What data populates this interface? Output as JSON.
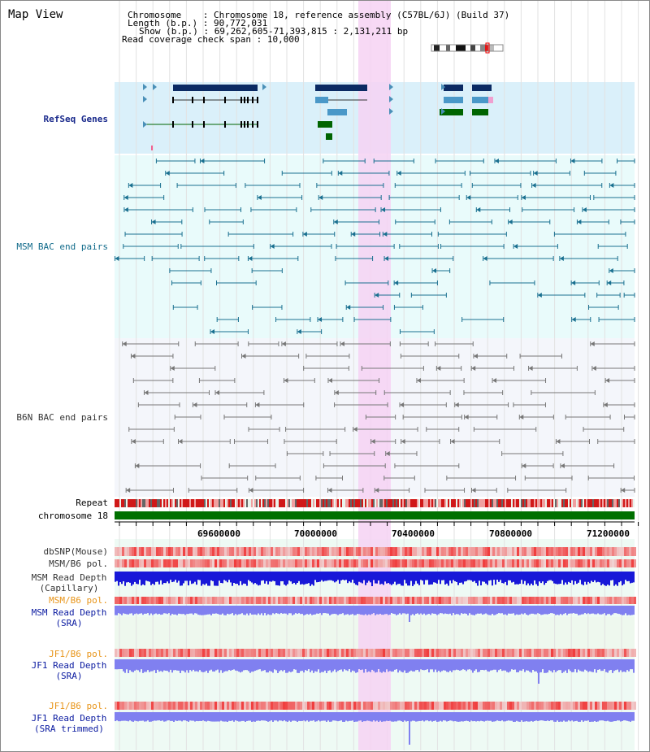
{
  "title": "Map View",
  "info": {
    "chromosome_label": "Chromosome",
    "chromosome_value": "Chromosome 18, reference assembly (C57BL/6J) (Build 37)",
    "length_label": "Length (b.p.)",
    "length_value": "90,772,031",
    "show_label": "Show (b.p.)",
    "show_value": "69,262,605-71,393,815 : 2,131,211 bp",
    "span_label": "Read coverage check span",
    "span_value": "10,000"
  },
  "tracks": {
    "refseq": "RefSeq Genes",
    "msm_bac": "MSM BAC end pairs",
    "b6n_bac": "B6N BAC end pairs",
    "repeat": "Repeat",
    "chromosome": "chromosome 18",
    "dbsnp": "dbSNP(Mouse)",
    "msm_b6_pol_1": "MSM/B6 pol.",
    "msm_depth_cap_1": "MSM Read Depth",
    "msm_depth_cap_2": "(Capillary)",
    "msm_b6_pol_2": "MSM/B6 pol.",
    "msm_depth_sra_1": "MSM Read Depth",
    "msm_depth_sra_2": "(SRA)",
    "jf1_b6_pol_1": "JF1/B6 pol.",
    "jf1_depth_sra_1": "JF1 Read Depth",
    "jf1_depth_sra_2": "(SRA)",
    "jf1_b6_pol_2": "JF1/B6 pol.",
    "jf1_depth_trim_1": "JF1 Read Depth",
    "jf1_depth_trim_2": "(SRA trimmed)"
  },
  "axis": {
    "ticks": [
      "69600000",
      "70000000",
      "70400000",
      "70800000",
      "71200000"
    ]
  },
  "colors": {
    "refseq_bg": "#daf0fa",
    "msm_bg": "#e9fbfb",
    "b6n_bg": "#f4f6fb",
    "highlight": "#f6d2f3",
    "gene_navy": "#0b2a63",
    "gene_blue": "#4a98c8",
    "gene_green": "#006400",
    "msm_pair": "#1a7090",
    "b6n_pair": "#777777",
    "chromosome_bar": "#007000",
    "depth_dark": "#1010d0",
    "depth_light": "#8080f0"
  }
}
